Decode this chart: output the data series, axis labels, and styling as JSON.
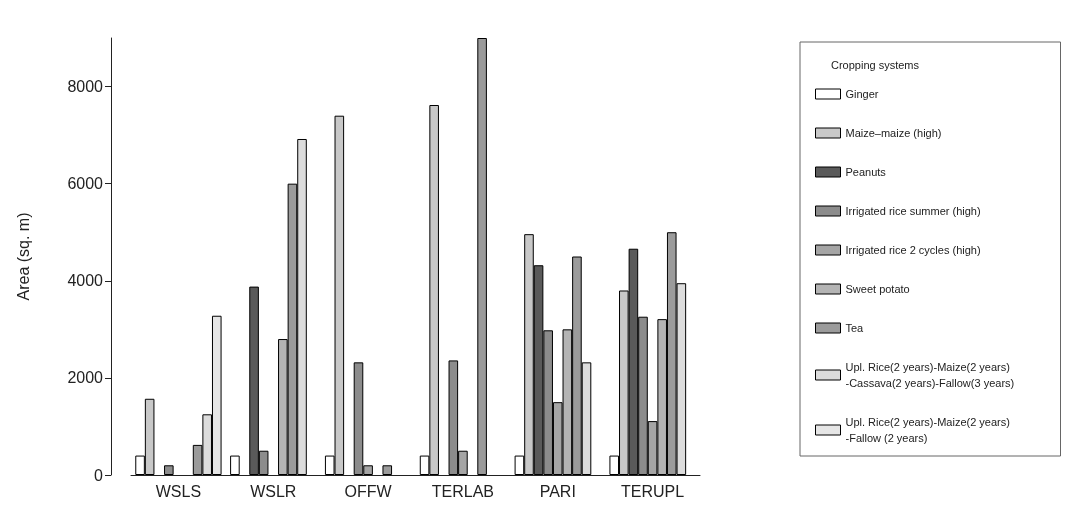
{
  "chart_data": {
    "type": "bar",
    "ylabel": "Area (sq. m)",
    "legend_title": "Cropping systems",
    "categories": [
      "WSLS",
      "WSLR",
      "OFFW",
      "TERLAB",
      "PARI",
      "TERUPL"
    ],
    "series": [
      {
        "name": "Ginger",
        "color": "#ffffff",
        "values": [
          400,
          400,
          400,
          400,
          400,
          400
        ]
      },
      {
        "name": "Maize–maize (high)",
        "color": "#c8c8c8",
        "values": [
          1570,
          null,
          7400,
          7620,
          4960,
          3800
        ]
      },
      {
        "name": "Peanuts",
        "color": "#5a5a5a",
        "values": [
          null,
          3880,
          null,
          null,
          4320,
          4660
        ]
      },
      {
        "name": "Irrigated rice summer (high)",
        "color": "#8c8c8c",
        "values": [
          200,
          500,
          2320,
          2360,
          2980,
          3260
        ]
      },
      {
        "name": "Irrigated rice 2 cycles (high)",
        "color": "#a5a5a5",
        "values": [
          null,
          null,
          200,
          500,
          1500,
          1110
        ]
      },
      {
        "name": "Sweet potato",
        "color": "#b4b4b4",
        "values": [
          null,
          2800,
          null,
          null,
          3000,
          3210
        ]
      },
      {
        "name": "Tea",
        "color": "#9b9b9b",
        "values": [
          620,
          6000,
          200,
          9000,
          4500,
          5000
        ]
      },
      {
        "name": "Upl. Rice(2 years)-Maize(2 years) -Cassava(2 years)-Fallow(3 years)",
        "color": "#dcdcdc",
        "values": [
          1250,
          6920,
          null,
          null,
          2320,
          3950
        ]
      },
      {
        "name": "Upl. Rice(2 years)-Maize(2 years) -Fallow (2 years)",
        "color": "#e6e6e6",
        "values": [
          3280,
          null,
          null,
          null,
          null,
          null
        ]
      }
    ],
    "ylim": [
      0,
      9000
    ],
    "yticks": [
      0,
      2000,
      4000,
      6000,
      8000
    ],
    "grid": false,
    "legend": "right"
  }
}
